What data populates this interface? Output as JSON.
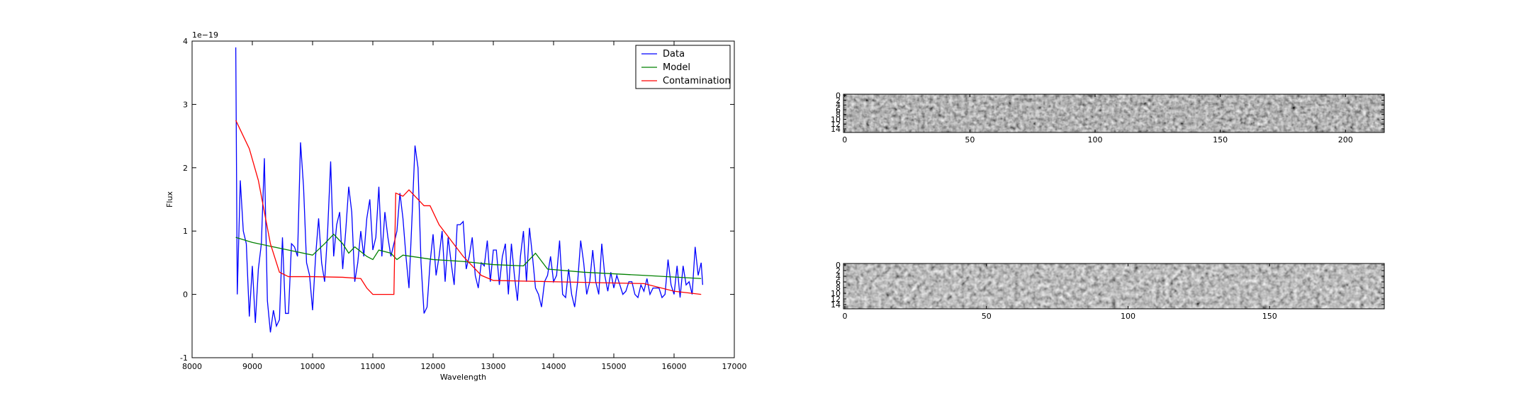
{
  "chart_data": [
    {
      "type": "line",
      "xlabel": "Wavelength",
      "ylabel": "Flux",
      "offset_text": "1e−19",
      "xlim": [
        8000,
        17000
      ],
      "xticks": [
        8000,
        9000,
        10000,
        11000,
        12000,
        13000,
        14000,
        15000,
        16000,
        17000
      ],
      "ylim": [
        -1,
        4
      ],
      "yticks": [
        -1,
        0,
        1,
        2,
        3,
        4
      ],
      "legend": "upper right",
      "series": [
        {
          "name": "Data",
          "color": "#0000ff",
          "x": [
            8725,
            8750,
            8800,
            8850,
            8900,
            8950,
            9000,
            9050,
            9100,
            9150,
            9200,
            9250,
            9300,
            9350,
            9400,
            9450,
            9500,
            9550,
            9600,
            9650,
            9700,
            9750,
            9800,
            9850,
            9900,
            9950,
            10000,
            10050,
            10100,
            10150,
            10200,
            10250,
            10300,
            10350,
            10400,
            10450,
            10500,
            10550,
            10600,
            10650,
            10700,
            10750,
            10800,
            10850,
            10900,
            10950,
            11000,
            11050,
            11100,
            11150,
            11200,
            11250,
            11300,
            11350,
            11400,
            11450,
            11500,
            11550,
            11600,
            11650,
            11700,
            11750,
            11800,
            11850,
            11900,
            11950,
            12000,
            12050,
            12100,
            12150,
            12200,
            12250,
            12300,
            12350,
            12400,
            12450,
            12500,
            12550,
            12600,
            12650,
            12700,
            12750,
            12800,
            12850,
            12900,
            12950,
            13000,
            13050,
            13100,
            13150,
            13200,
            13250,
            13300,
            13350,
            13400,
            13450,
            13500,
            13550,
            13600,
            13650,
            13700,
            13750,
            13800,
            13850,
            13900,
            13950,
            14000,
            14050,
            14100,
            14150,
            14200,
            14250,
            14300,
            14350,
            14400,
            14450,
            14500,
            14550,
            14600,
            14650,
            14700,
            14750,
            14800,
            14850,
            14900,
            14950,
            15000,
            15050,
            15100,
            15150,
            15200,
            15250,
            15300,
            15350,
            15400,
            15450,
            15500,
            15550,
            15600,
            15650,
            15700,
            15750,
            15800,
            15850,
            15900,
            15950,
            16000,
            16050,
            16100,
            16150,
            16200,
            16250,
            16300,
            16350,
            16400,
            16450,
            16475
          ],
          "values": [
            3.9,
            0.0,
            1.8,
            1.0,
            0.8,
            -0.35,
            0.45,
            -0.45,
            0.4,
            0.8,
            2.15,
            -0.1,
            -0.6,
            -0.25,
            -0.5,
            -0.4,
            0.9,
            -0.3,
            -0.3,
            0.8,
            0.75,
            0.6,
            2.4,
            1.7,
            0.5,
            0.3,
            -0.25,
            0.6,
            1.2,
            0.5,
            0.2,
            1.0,
            2.1,
            0.6,
            1.1,
            1.3,
            0.4,
            1.0,
            1.7,
            1.3,
            0.2,
            0.5,
            1.0,
            0.6,
            1.2,
            1.5,
            0.7,
            0.9,
            1.7,
            0.6,
            1.3,
            0.9,
            0.6,
            0.8,
            1.0,
            1.6,
            1.2,
            0.6,
            0.1,
            1.2,
            2.35,
            2.0,
            0.5,
            -0.3,
            -0.2,
            0.5,
            0.95,
            0.3,
            0.6,
            1.0,
            0.2,
            0.9,
            0.5,
            0.15,
            1.1,
            1.1,
            1.15,
            0.4,
            0.6,
            0.9,
            0.3,
            0.1,
            0.5,
            0.45,
            0.85,
            0.2,
            0.7,
            0.7,
            0.15,
            0.6,
            0.8,
            0.0,
            0.8,
            0.3,
            -0.1,
            0.6,
            1.0,
            0.2,
            1.05,
            0.6,
            0.1,
            0.0,
            -0.2,
            0.2,
            0.3,
            0.6,
            0.2,
            0.3,
            0.85,
            0.0,
            -0.05,
            0.4,
            0.0,
            -0.2,
            0.2,
            0.85,
            0.5,
            0.0,
            0.2,
            0.7,
            0.2,
            0.0,
            0.8,
            0.3,
            0.05,
            0.35,
            0.1,
            0.3,
            0.15,
            0.0,
            0.05,
            0.2,
            0.2,
            0.0,
            -0.05,
            0.15,
            0.05,
            0.25,
            0.0,
            0.1,
            0.1,
            0.1,
            -0.05,
            0.0,
            0.55,
            0.15,
            0.0,
            0.45,
            -0.05,
            0.45,
            0.15,
            0.2,
            0.0,
            0.75,
            0.3,
            0.5,
            0.15
          ]
        },
        {
          "name": "Model",
          "color": "#008000",
          "x": [
            8725,
            9000,
            9500,
            10000,
            10200,
            10350,
            10500,
            10600,
            10700,
            10900,
            11000,
            11100,
            11300,
            11400,
            11500,
            12000,
            12500,
            13000,
            13500,
            13700,
            13900,
            14500,
            15500,
            16450
          ],
          "values": [
            0.9,
            0.82,
            0.72,
            0.62,
            0.8,
            0.95,
            0.8,
            0.65,
            0.75,
            0.6,
            0.55,
            0.7,
            0.65,
            0.55,
            0.62,
            0.55,
            0.52,
            0.47,
            0.45,
            0.65,
            0.4,
            0.35,
            0.3,
            0.25
          ]
        },
        {
          "name": "Contamination",
          "color": "#ff0000",
          "x": [
            8725,
            8800,
            8950,
            9100,
            9300,
            9450,
            9600,
            10000,
            10500,
            10800,
            10900,
            11000,
            11350,
            11380,
            11500,
            11600,
            11700,
            11850,
            11950,
            12100,
            12500,
            12800,
            13000,
            14000,
            15000,
            15500,
            16000,
            16450
          ],
          "values": [
            2.75,
            2.6,
            2.3,
            1.8,
            0.8,
            0.35,
            0.28,
            0.28,
            0.27,
            0.25,
            0.1,
            0.0,
            0.0,
            1.6,
            1.55,
            1.65,
            1.55,
            1.4,
            1.4,
            1.1,
            0.6,
            0.3,
            0.22,
            0.2,
            0.18,
            0.17,
            0.05,
            0.0
          ]
        }
      ]
    },
    {
      "type": "image",
      "xlim": [
        -0.5,
        215.5
      ],
      "xticks": [
        0,
        50,
        100,
        150,
        200
      ],
      "ylim": [
        15.5,
        -0.5
      ],
      "yticks": [
        0,
        2,
        4,
        6,
        8,
        10,
        12,
        14
      ]
    },
    {
      "type": "image",
      "xlim": [
        -0.5,
        190.5
      ],
      "xticks": [
        0,
        50,
        100,
        150
      ],
      "ylim": [
        15.5,
        -0.5
      ],
      "yticks": [
        0,
        2,
        4,
        6,
        8,
        10,
        12,
        14
      ]
    }
  ]
}
